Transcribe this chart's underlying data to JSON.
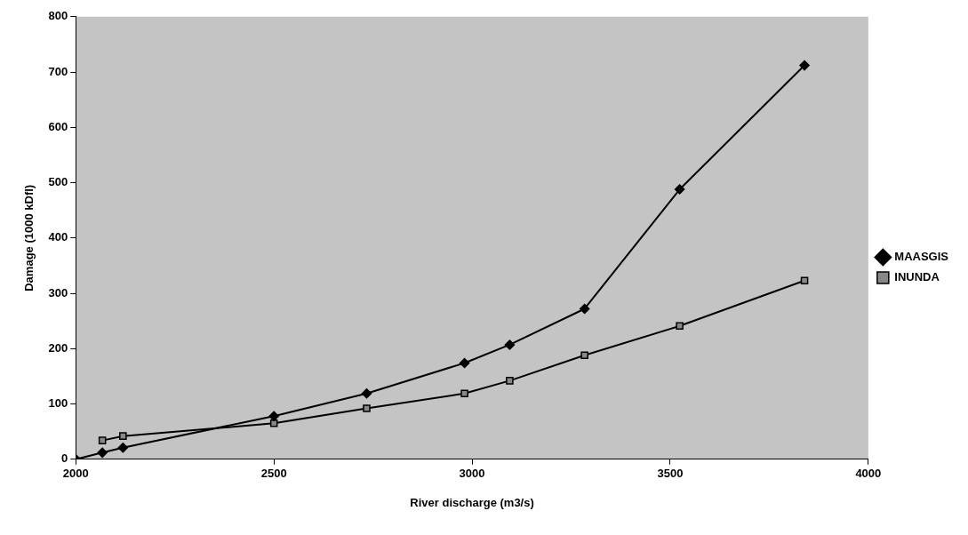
{
  "chart_data": {
    "type": "line",
    "xlabel": "River discharge (m3/s)",
    "ylabel": "Damage (1000 kDfl)",
    "xlim": [
      2000,
      4000
    ],
    "xticks": [
      2000,
      2500,
      3000,
      3500,
      4000
    ],
    "ylim": [
      0,
      800
    ],
    "yticks": [
      0,
      100,
      200,
      300,
      400,
      500,
      600,
      700,
      800
    ],
    "grid": false,
    "legend": "right",
    "series": [
      {
        "name": "MAASGIS",
        "color": "#000000",
        "marker": "diamond",
        "x": [
          2000,
          2067,
          2119,
          2500,
          2734,
          2981,
          3095,
          3284,
          3524,
          3839
        ],
        "values": [
          0,
          12,
          21,
          78,
          119,
          174,
          207,
          272,
          488,
          712
        ]
      },
      {
        "name": "INUNDA",
        "color": "#000000",
        "marker": "square",
        "x": [
          2067,
          2119,
          2500,
          2734,
          2981,
          3095,
          3284,
          3524,
          3839
        ],
        "values": [
          34,
          42,
          65,
          92,
          119,
          142,
          188,
          241,
          323
        ]
      }
    ]
  }
}
